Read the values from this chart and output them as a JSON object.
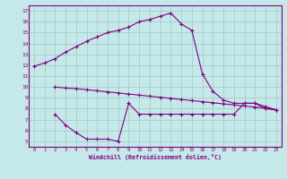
{
  "xlabel": "Windchill (Refroidissement éolien,°C)",
  "background_color": "#c5e8e8",
  "grid_color": "#9fc8c8",
  "line_color": "#800080",
  "xlim": [
    -0.5,
    23.5
  ],
  "ylim": [
    4.5,
    17.5
  ],
  "xticks": [
    0,
    1,
    2,
    3,
    4,
    5,
    6,
    7,
    8,
    9,
    10,
    11,
    12,
    13,
    14,
    15,
    16,
    17,
    18,
    19,
    20,
    21,
    22,
    23
  ],
  "yticks": [
    5,
    6,
    7,
    8,
    9,
    10,
    11,
    12,
    13,
    14,
    15,
    16,
    17
  ],
  "line1_x": [
    0,
    1,
    2,
    3,
    4,
    5,
    6,
    7,
    8,
    9,
    10,
    11,
    12,
    13,
    14,
    15,
    16,
    17,
    18,
    19,
    20,
    21,
    22,
    23
  ],
  "line1_y": [
    11.9,
    12.2,
    12.6,
    13.2,
    13.7,
    14.2,
    14.6,
    15.0,
    15.2,
    15.5,
    16.0,
    16.2,
    16.5,
    16.8,
    15.8,
    15.2,
    11.2,
    9.6,
    8.8,
    8.5,
    8.5,
    8.5,
    8.2,
    7.9
  ],
  "line2_x": [
    2,
    3,
    4,
    5,
    6,
    7,
    8,
    9,
    10,
    11,
    12,
    13,
    14,
    15,
    16,
    17,
    18,
    19,
    20,
    21,
    22,
    23
  ],
  "line2_y": [
    10.0,
    9.9,
    9.85,
    9.75,
    9.65,
    9.55,
    9.45,
    9.35,
    9.25,
    9.15,
    9.05,
    8.95,
    8.85,
    8.75,
    8.65,
    8.55,
    8.45,
    8.35,
    8.25,
    8.15,
    8.05,
    7.9
  ],
  "line3_x": [
    2,
    3,
    4,
    5,
    6,
    7,
    8,
    9,
    10,
    11,
    12,
    13,
    14,
    15,
    16,
    17,
    18,
    19,
    20,
    21,
    22,
    23
  ],
  "line3_y": [
    7.5,
    6.5,
    5.8,
    5.2,
    5.2,
    5.2,
    5.0,
    8.5,
    7.5,
    7.5,
    7.5,
    7.5,
    7.5,
    7.5,
    7.5,
    7.5,
    7.5,
    7.5,
    8.5,
    8.5,
    8.0,
    7.9
  ]
}
